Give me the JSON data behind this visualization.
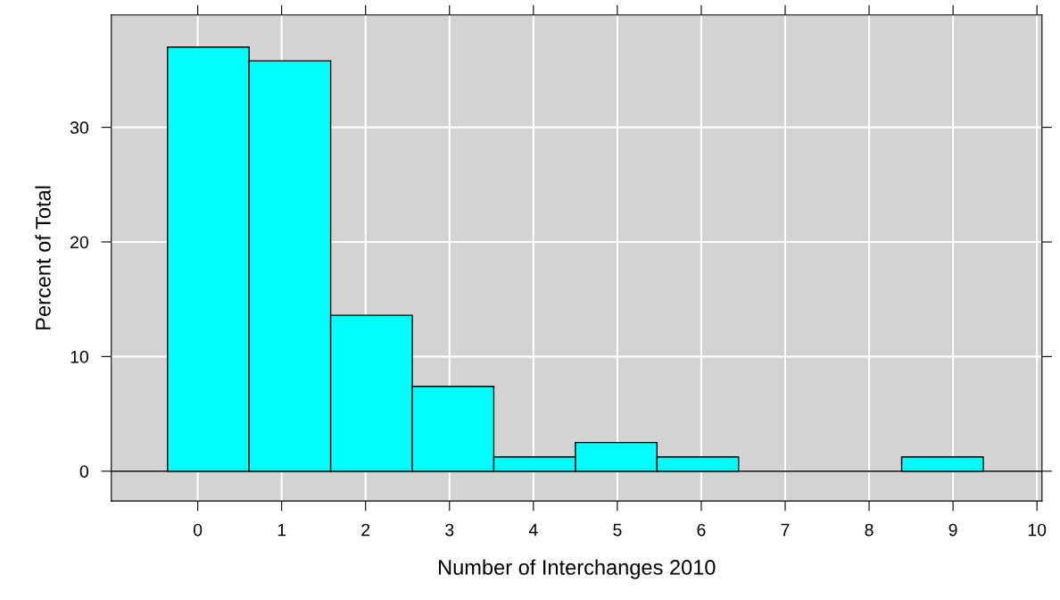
{
  "chart_data": {
    "type": "histogram",
    "xlabel": "Number of Interchanges 2010",
    "ylabel": "Percent of Total",
    "bins": [
      -0.36,
      0.612,
      1.584,
      2.556,
      3.528,
      4.5,
      5.472,
      6.444,
      7.416,
      8.388,
      9.36
    ],
    "values": [
      37.0,
      35.8,
      13.6,
      7.4,
      1.25,
      2.5,
      1.25,
      0,
      0,
      1.25
    ],
    "color": "#00ffff",
    "xlim": [
      -1.03,
      10.06
    ],
    "xticks": [
      0,
      1,
      2,
      3,
      4,
      5,
      6,
      7,
      8,
      9,
      10
    ],
    "ylim": [
      -2.6,
      39.8
    ],
    "yticks": [
      0,
      10,
      20,
      30
    ],
    "grid": true,
    "ref_lines": [
      {
        "axis": "y",
        "value": 0,
        "color": "#000000"
      }
    ]
  }
}
